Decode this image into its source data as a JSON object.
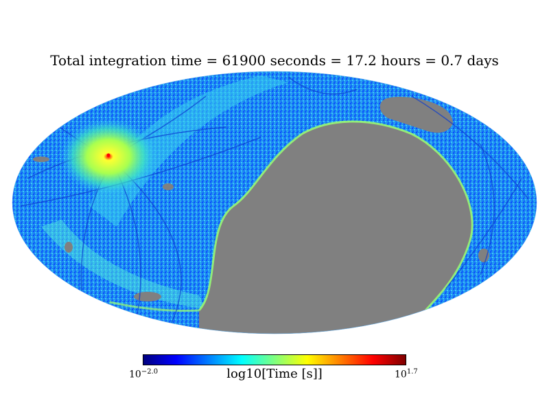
{
  "title": "Total integration time = 61900 seconds = 17.2 hours = 0.7 days",
  "colorbar": {
    "label": "log10[Time [s]]",
    "min_base": "10",
    "min_exp": "−2.0",
    "max_base": "10",
    "max_exp": "1.7",
    "colormap": [
      "#00007f",
      "#0000ff",
      "#007fff",
      "#00ffff",
      "#7fff7f",
      "#ffff00",
      "#ff7f00",
      "#ff0000",
      "#7f0000"
    ]
  },
  "map": {
    "projection": "mollweide",
    "unobserved_color": "#808080",
    "background_color": "#2aa0f0",
    "hotspot_color": "#ffff40",
    "peak_color": "#ff0000"
  }
}
